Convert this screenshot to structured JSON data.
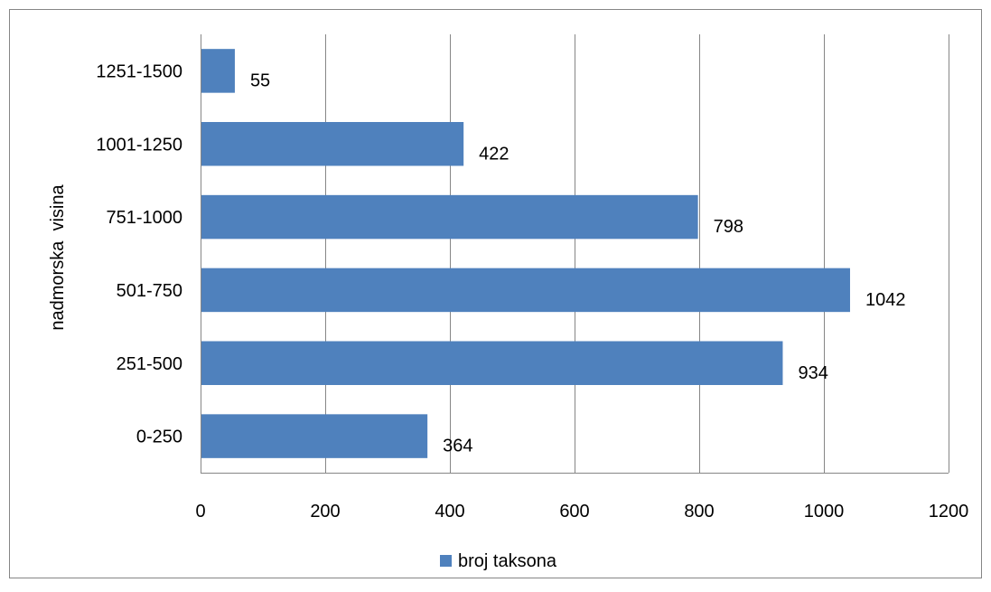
{
  "chart_data": {
    "type": "bar",
    "orientation": "horizontal",
    "categories": [
      "0-250",
      "251-500",
      "501-750",
      "751-1000",
      "1001-1250",
      "1251-1500"
    ],
    "series": [
      {
        "name": "broj taksona",
        "values": [
          364,
          934,
          1042,
          798,
          422,
          55
        ],
        "color": "#4f81bd"
      }
    ],
    "data_labels": [
      "364",
      "934",
      "1042",
      "798",
      "422",
      "55"
    ],
    "xlim": [
      0,
      1200
    ],
    "x_ticks": [
      0,
      200,
      400,
      600,
      800,
      1000,
      1200
    ],
    "tick_labels": [
      "0",
      "200",
      "400",
      "600",
      "800",
      "1000",
      "1200"
    ],
    "ylabel": "nadmorska  visina",
    "xlabel": "",
    "title": "",
    "grid": "vertical",
    "legend_position": "bottom"
  },
  "colors": {
    "bar": "#4f81bd",
    "grid": "#868686",
    "axis": "#868686",
    "frame": "#868686"
  }
}
